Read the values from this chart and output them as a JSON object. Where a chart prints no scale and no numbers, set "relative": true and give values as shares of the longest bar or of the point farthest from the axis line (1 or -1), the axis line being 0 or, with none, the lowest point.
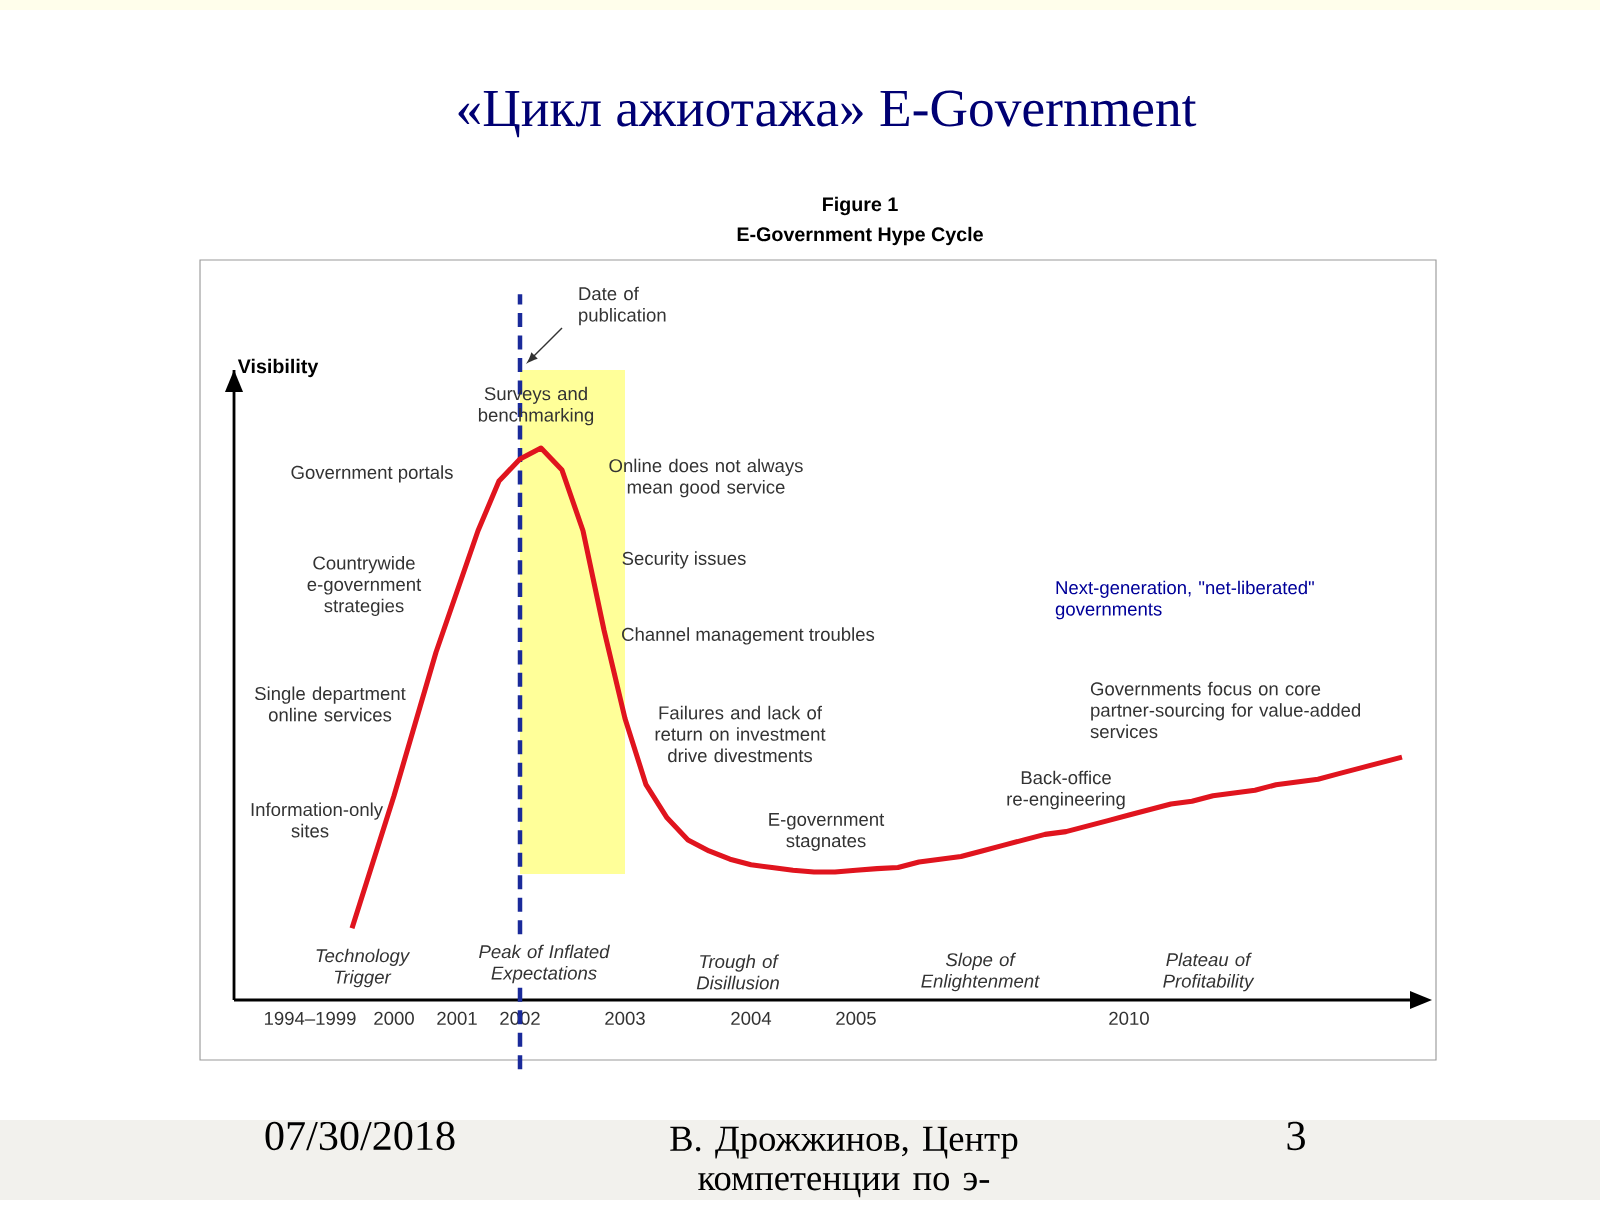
{
  "chart_data": {
    "type": "line",
    "relative": true,
    "title": "«Цикл ажиотажа» E-Government",
    "subtitle": "E-Government Hype Cycle",
    "ylabel": "Visibility",
    "categories": [
      "1994–1999",
      null,
      null,
      null,
      "2000",
      null,
      null,
      "2001",
      null,
      null,
      "2002",
      null,
      null,
      null,
      null,
      "2003",
      null,
      null,
      null,
      null,
      null,
      "2004",
      null,
      null,
      null,
      null,
      "2005",
      null,
      null,
      null,
      null,
      null,
      null,
      null,
      null,
      null,
      null,
      null,
      null,
      "2010",
      null,
      null,
      null,
      null,
      null,
      null,
      null,
      null,
      null,
      null,
      null,
      null,
      null
    ],
    "values": [
      null,
      null,
      0.13,
      0.25,
      0.37,
      0.5,
      0.63,
      0.74,
      0.85,
      0.94,
      0.98,
      1.0,
      0.96,
      0.85,
      0.67,
      0.51,
      0.39,
      0.33,
      0.29,
      0.27,
      0.255,
      0.245,
      0.24,
      0.235,
      0.232,
      0.232,
      0.235,
      0.238,
      0.24,
      0.25,
      0.255,
      0.26,
      0.27,
      0.28,
      0.29,
      0.3,
      0.305,
      0.315,
      0.325,
      0.335,
      0.345,
      0.355,
      0.36,
      0.37,
      0.375,
      0.38,
      0.39,
      0.395,
      0.4,
      0.41,
      0.42,
      0.43,
      0.44
    ],
    "color": "#e0141e",
    "bands": [
      {
        "axis": "x",
        "from": "2002",
        "to": "2003",
        "color": "#ffff99"
      }
    ],
    "ref_lines": [
      {
        "axis": "x",
        "value": "2002",
        "label": "Date of publication",
        "color": "#1a2a9a",
        "line_style": "dashed"
      }
    ],
    "annotations": [
      "Figure 1",
      "Surveys and benchmarking",
      "Government portals",
      "Online does not always mean good service",
      "Countrywide e-government strategies",
      "Security issues",
      "Channel management troubles",
      "Single department online services",
      "Failures and lack of return on investment drive divestments",
      "Information-only sites",
      "E-government stagnates",
      "Back-office re-engineering",
      "Governments focus on core partner-sourcing for value-added services",
      "Next-generation, \"net-liberated\" governments",
      "Technology Trigger",
      "Peak of Inflated Expectations",
      "Trough of Disillusion",
      "Slope of Enlightenment",
      "Plateau of Profitability",
      "07/30/2018",
      "В. Дрожжинов, Центр компетенции по э-",
      "3"
    ]
  }
}
